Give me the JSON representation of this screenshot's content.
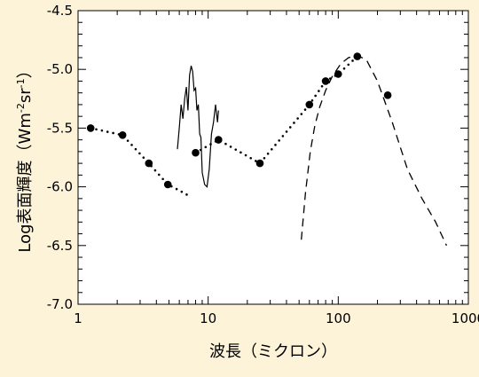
{
  "chart_data": {
    "type": "scatter",
    "title": "",
    "xlabel": "波長（ミクロン）",
    "ylabel_parts": [
      "Log表面輝度（Wm",
      "-2",
      "sr",
      "-1",
      "）"
    ],
    "xscale": "log",
    "xlim": [
      1,
      1000
    ],
    "ylim": [
      -7.0,
      -4.5
    ],
    "x_ticks": [
      1,
      10,
      100,
      1000
    ],
    "x_tick_labels": [
      "1",
      "10",
      "100",
      "1000"
    ],
    "y_ticks": [
      -7.0,
      -6.5,
      -6.0,
      -5.5,
      -5.0,
      -4.5
    ],
    "y_tick_labels": [
      "-7.0",
      "-6.5",
      "-6.0",
      "-5.5",
      "-5.0",
      "-4.5"
    ],
    "grid": false,
    "legend": "none",
    "colors": {
      "background": "#fdf3d9",
      "plot_area": "#ffffff",
      "ink": "#000000"
    },
    "series": [
      {
        "style": "markers",
        "x": [
          1.25,
          2.2,
          3.5,
          4.9,
          8.0,
          12.0,
          25.0,
          60.0,
          80.0,
          100.0,
          140.0,
          240.0
        ],
        "y": [
          -5.5,
          -5.56,
          -5.8,
          -5.98,
          -5.71,
          -5.6,
          -5.8,
          -5.3,
          -5.1,
          -5.04,
          -4.89,
          -5.22
        ]
      },
      {
        "style": "dotted",
        "x": [
          1.25,
          2.2,
          3.5,
          4.9,
          6.0,
          7.2
        ],
        "y": [
          -5.5,
          -5.56,
          -5.8,
          -5.98,
          -6.03,
          -6.08
        ]
      },
      {
        "style": "dotted",
        "x": [
          8.0,
          12.0,
          25.0,
          60.0,
          80.0,
          100.0,
          140.0
        ],
        "y": [
          -5.71,
          -5.6,
          -5.8,
          -5.3,
          -5.1,
          -5.04,
          -4.89
        ]
      },
      {
        "style": "solid",
        "x": [
          5.8,
          6.0,
          6.2,
          6.4,
          6.6,
          6.8,
          7.0,
          7.2,
          7.4,
          7.6,
          7.8,
          8.0,
          8.2,
          8.4,
          8.6,
          8.8,
          9.0,
          9.4,
          9.8,
          10.2,
          10.6,
          11.0,
          11.4,
          11.8,
          12.0
        ],
        "y": [
          -5.68,
          -5.5,
          -5.3,
          -5.42,
          -5.25,
          -5.15,
          -5.35,
          -5.05,
          -4.97,
          -5.02,
          -5.18,
          -5.16,
          -5.35,
          -5.3,
          -5.55,
          -5.58,
          -5.88,
          -5.98,
          -6.0,
          -5.85,
          -5.55,
          -5.45,
          -5.3,
          -5.45,
          -5.35
        ]
      },
      {
        "style": "dashed",
        "x": [
          52,
          56,
          61,
          66,
          72,
          80,
          90,
          105,
          120,
          140,
          165,
          200,
          260,
          340,
          440,
          560,
          680
        ],
        "y": [
          -6.45,
          -6.05,
          -5.7,
          -5.48,
          -5.32,
          -5.18,
          -5.06,
          -4.95,
          -4.9,
          -4.88,
          -4.92,
          -5.1,
          -5.45,
          -5.85,
          -6.1,
          -6.3,
          -6.5
        ]
      }
    ]
  }
}
